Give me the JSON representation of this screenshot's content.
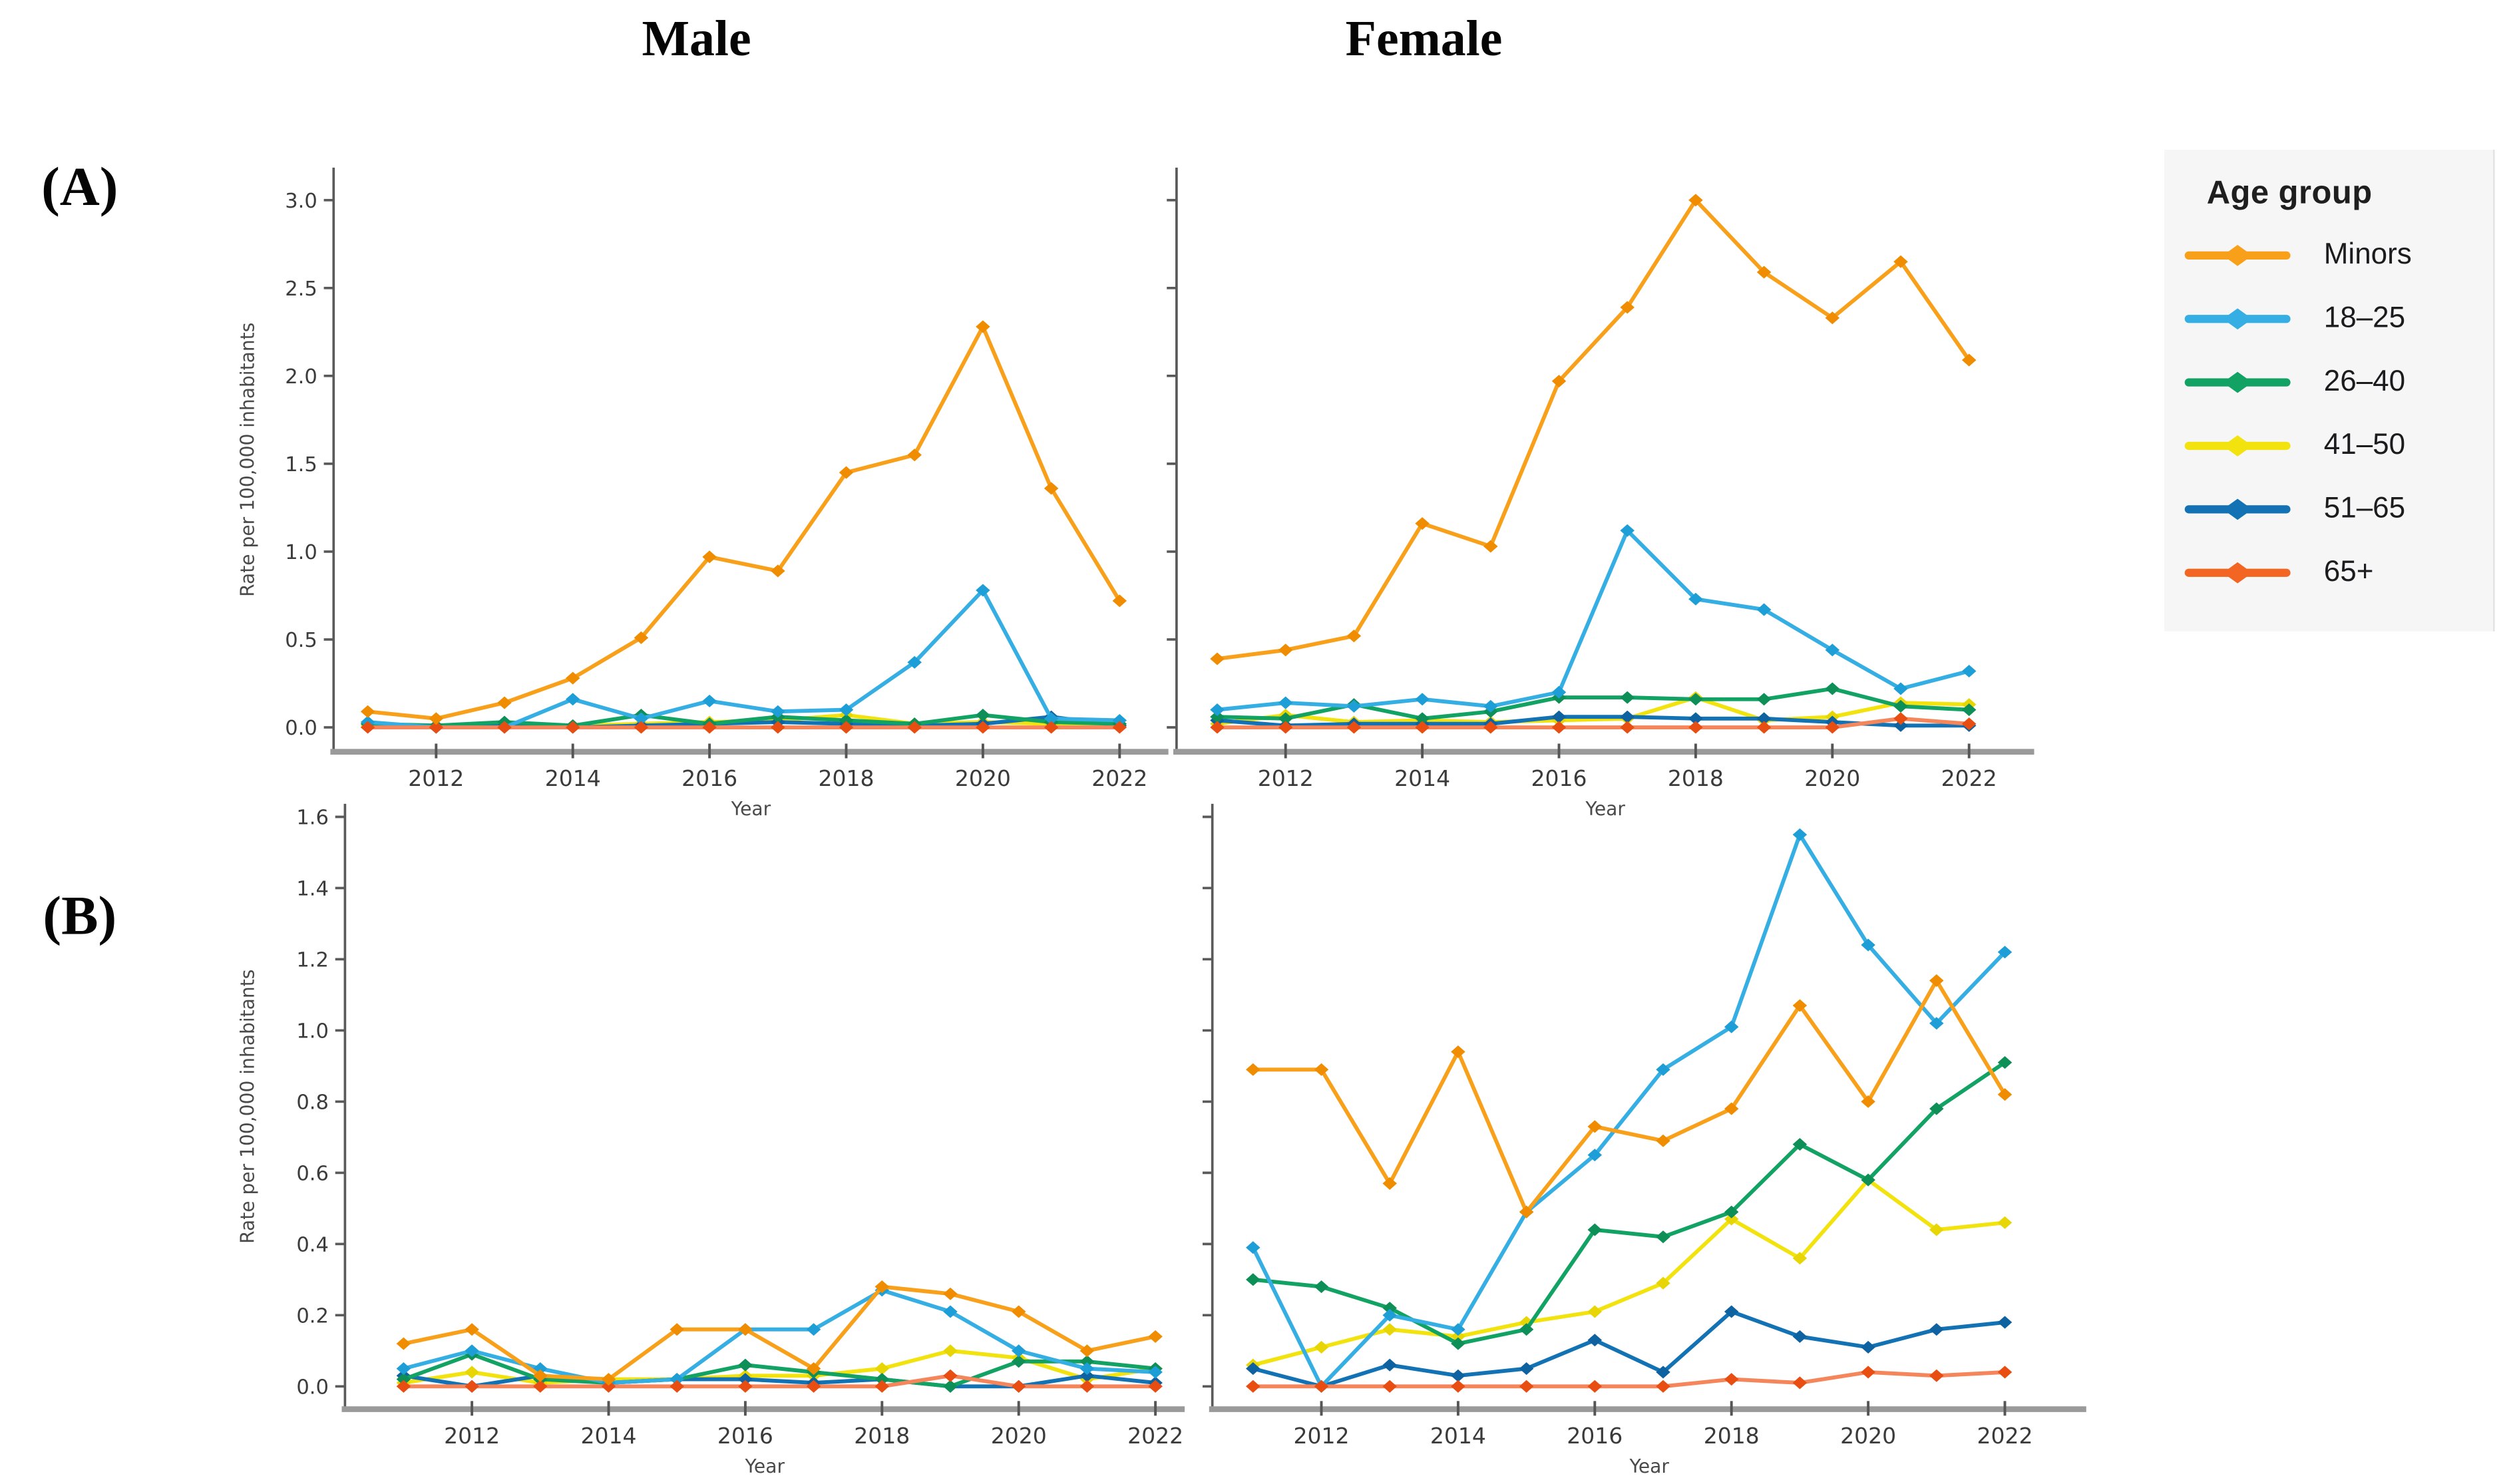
{
  "figure": {
    "column_titles": {
      "left": "Male",
      "right": "Female"
    },
    "panel_labels": {
      "top": "(A)",
      "bottom": "(B)"
    }
  },
  "legend": {
    "title": "Age group",
    "items": [
      {
        "label": "Minors",
        "color": "#F9A01B",
        "marker_color": "#F08C00"
      },
      {
        "label": "18–25",
        "color": "#35AEE3",
        "marker_color": "#1E9ED6"
      },
      {
        "label": "26–40",
        "color": "#12A364",
        "marker_color": "#0D8F57"
      },
      {
        "label": "41–50",
        "color": "#F2E30E",
        "marker_color": "#E8D505"
      },
      {
        "label": "51–65",
        "color": "#1272B4",
        "marker_color": "#0E62A0"
      },
      {
        "label": "65+",
        "color": "#F26522",
        "line_color": "#F5855A",
        "marker_color": "#E84E12"
      }
    ]
  },
  "chart_data": [
    {
      "id": "a-male",
      "type": "line",
      "panel": "A",
      "sex": "Male",
      "xlabel": "Year",
      "ylabel": "Rate per 100,000 inhabitants",
      "x": [
        2011,
        2012,
        2013,
        2014,
        2015,
        2016,
        2017,
        2018,
        2019,
        2020,
        2021,
        2022
      ],
      "xticks": [
        2012,
        2014,
        2016,
        2018,
        2020,
        2022
      ],
      "ylim": [
        0,
        3.0
      ],
      "yticks": [
        0.0,
        0.5,
        1.0,
        1.5,
        2.0,
        2.5,
        3.0
      ],
      "ytick_labels_visible": true,
      "grid": false,
      "series": [
        {
          "name": "Minors",
          "values": [
            0.09,
            0.05,
            0.14,
            0.28,
            0.51,
            0.97,
            0.89,
            1.45,
            1.55,
            2.28,
            1.36,
            0.72
          ]
        },
        {
          "name": "18–25",
          "values": [
            0.03,
            0.0,
            0.0,
            0.16,
            0.05,
            0.15,
            0.09,
            0.1,
            0.37,
            0.78,
            0.05,
            0.04
          ]
        },
        {
          "name": "26–40",
          "values": [
            0.02,
            0.01,
            0.03,
            0.01,
            0.07,
            0.02,
            0.06,
            0.04,
            0.02,
            0.07,
            0.03,
            0.02
          ]
        },
        {
          "name": "41–50",
          "values": [
            0.01,
            0.01,
            0.02,
            0.01,
            0.02,
            0.03,
            0.04,
            0.07,
            0.02,
            0.03,
            0.02,
            0.02
          ]
        },
        {
          "name": "51–65",
          "values": [
            0.02,
            0.0,
            0.01,
            0.0,
            0.01,
            0.02,
            0.03,
            0.02,
            0.01,
            0.02,
            0.06,
            0.01
          ]
        },
        {
          "name": "65+",
          "values": [
            0.0,
            0.0,
            0.0,
            0.0,
            0.0,
            0.0,
            0.0,
            0.0,
            0.0,
            0.0,
            0.0,
            0.0
          ]
        }
      ]
    },
    {
      "id": "a-female",
      "type": "line",
      "panel": "A",
      "sex": "Female",
      "xlabel": "Year",
      "ylabel": "",
      "x": [
        2011,
        2012,
        2013,
        2014,
        2015,
        2016,
        2017,
        2018,
        2019,
        2020,
        2021,
        2022
      ],
      "xticks": [
        2012,
        2014,
        2016,
        2018,
        2020,
        2022
      ],
      "ylim": [
        0,
        3.0
      ],
      "yticks": [
        0.0,
        0.5,
        1.0,
        1.5,
        2.0,
        2.5,
        3.0
      ],
      "ytick_labels_visible": false,
      "grid": false,
      "series": [
        {
          "name": "Minors",
          "values": [
            0.39,
            0.44,
            0.52,
            1.16,
            1.03,
            1.97,
            2.39,
            3.0,
            2.59,
            2.33,
            2.65,
            2.09
          ]
        },
        {
          "name": "18–25",
          "values": [
            0.1,
            0.14,
            0.12,
            0.16,
            0.12,
            0.2,
            1.12,
            0.73,
            0.67,
            0.44,
            0.22,
            0.32
          ]
        },
        {
          "name": "26–40",
          "values": [
            0.06,
            0.05,
            0.13,
            0.05,
            0.09,
            0.17,
            0.17,
            0.16,
            0.16,
            0.22,
            0.12,
            0.1
          ]
        },
        {
          "name": "41–50",
          "values": [
            0.02,
            0.07,
            0.03,
            0.04,
            0.03,
            0.04,
            0.05,
            0.17,
            0.04,
            0.06,
            0.14,
            0.13
          ]
        },
        {
          "name": "51–65",
          "values": [
            0.04,
            0.01,
            0.02,
            0.02,
            0.02,
            0.06,
            0.06,
            0.05,
            0.05,
            0.03,
            0.01,
            0.01
          ]
        },
        {
          "name": "65+",
          "values": [
            0.0,
            0.0,
            0.0,
            0.0,
            0.0,
            0.0,
            0.0,
            0.0,
            0.0,
            0.0,
            0.05,
            0.02
          ]
        }
      ]
    },
    {
      "id": "b-male",
      "type": "line",
      "panel": "B",
      "sex": "Male",
      "xlabel": "Year",
      "ylabel": "Rate per 100,000 inhabitants",
      "x": [
        2011,
        2012,
        2013,
        2014,
        2015,
        2016,
        2017,
        2018,
        2019,
        2020,
        2021,
        2022
      ],
      "xticks": [
        2012,
        2014,
        2016,
        2018,
        2020,
        2022
      ],
      "ylim": [
        0,
        1.6
      ],
      "yticks": [
        0.0,
        0.2,
        0.4,
        0.6,
        0.8,
        1.0,
        1.2,
        1.4,
        1.6
      ],
      "ytick_labels_visible": true,
      "grid": false,
      "series": [
        {
          "name": "Minors",
          "values": [
            0.12,
            0.16,
            0.03,
            0.02,
            0.16,
            0.16,
            0.05,
            0.28,
            0.26,
            0.21,
            0.1,
            0.14
          ]
        },
        {
          "name": "18–25",
          "values": [
            0.05,
            0.1,
            0.05,
            0.01,
            0.02,
            0.16,
            0.16,
            0.27,
            0.21,
            0.1,
            0.05,
            0.04
          ]
        },
        {
          "name": "26–40",
          "values": [
            0.02,
            0.09,
            0.02,
            0.01,
            0.02,
            0.06,
            0.04,
            0.02,
            0.0,
            0.07,
            0.07,
            0.05
          ]
        },
        {
          "name": "41–50",
          "values": [
            0.01,
            0.04,
            0.01,
            0.02,
            0.02,
            0.03,
            0.03,
            0.05,
            0.1,
            0.08,
            0.02,
            0.05
          ]
        },
        {
          "name": "51–65",
          "values": [
            0.03,
            0.0,
            0.03,
            0.01,
            0.02,
            0.02,
            0.01,
            0.02,
            0.0,
            0.0,
            0.03,
            0.01
          ]
        },
        {
          "name": "65+",
          "values": [
            0.0,
            0.0,
            0.0,
            0.0,
            0.0,
            0.0,
            0.0,
            0.0,
            0.03,
            0.0,
            0.0,
            0.0
          ]
        }
      ]
    },
    {
      "id": "b-female",
      "type": "line",
      "panel": "B",
      "sex": "Female",
      "xlabel": "Year",
      "ylabel": "",
      "x": [
        2011,
        2012,
        2013,
        2014,
        2015,
        2016,
        2017,
        2018,
        2019,
        2020,
        2021,
        2022
      ],
      "xticks": [
        2012,
        2014,
        2016,
        2018,
        2020,
        2022
      ],
      "ylim": [
        0,
        1.6
      ],
      "yticks": [
        0.0,
        0.2,
        0.4,
        0.6,
        0.8,
        1.0,
        1.2,
        1.4,
        1.6
      ],
      "ytick_labels_visible": false,
      "grid": false,
      "series": [
        {
          "name": "Minors",
          "values": [
            0.89,
            0.89,
            0.57,
            0.94,
            0.49,
            0.73,
            0.69,
            0.78,
            1.07,
            0.8,
            1.14,
            0.82
          ]
        },
        {
          "name": "18–25",
          "values": [
            0.39,
            0.0,
            0.2,
            0.16,
            0.49,
            0.65,
            0.89,
            1.01,
            1.55,
            1.24,
            1.02,
            1.22
          ]
        },
        {
          "name": "26–40",
          "values": [
            0.3,
            0.28,
            0.22,
            0.12,
            0.16,
            0.44,
            0.42,
            0.49,
            0.68,
            0.58,
            0.78,
            0.91
          ]
        },
        {
          "name": "41–50",
          "values": [
            0.06,
            0.11,
            0.16,
            0.14,
            0.18,
            0.21,
            0.29,
            0.47,
            0.36,
            0.58,
            0.44,
            0.46
          ]
        },
        {
          "name": "51–65",
          "values": [
            0.05,
            0.0,
            0.06,
            0.03,
            0.05,
            0.13,
            0.04,
            0.21,
            0.14,
            0.11,
            0.16,
            0.18
          ]
        },
        {
          "name": "65+",
          "values": [
            0.0,
            0.0,
            0.0,
            0.0,
            0.0,
            0.0,
            0.0,
            0.02,
            0.01,
            0.04,
            0.03,
            0.04
          ]
        }
      ]
    }
  ]
}
